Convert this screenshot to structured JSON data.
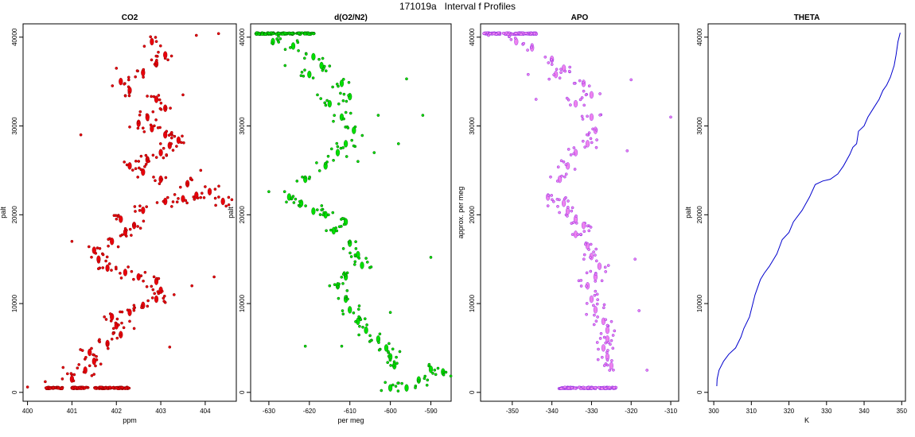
{
  "figure": {
    "title": "171019a   Interval f Profiles"
  },
  "chart_data": [
    {
      "type": "scatter",
      "title": "CO2",
      "xlabel": "ppm",
      "ylabel": "palt",
      "xlim": [
        399.9,
        404.7
      ],
      "ylim": [
        -1000,
        41500
      ],
      "xticks": [
        400,
        401,
        402,
        403,
        404
      ],
      "yticks": [
        0,
        10000,
        20000,
        30000,
        40000
      ],
      "color": "#e8000b",
      "outline": "#8b0000",
      "series": [
        {
          "x": [
            400.6,
            401.2,
            401.7,
            402.1
          ],
          "y": [
            500,
            500,
            500,
            500
          ]
        },
        {
          "x": [
            401.0,
            401.3,
            401.5,
            401.4,
            401.8,
            402.1,
            402.0,
            401.9,
            402.3,
            402.6,
            402.9,
            403.0,
            402.9,
            402.5,
            402.2,
            401.8,
            401.6,
            401.5,
            401.9,
            402.2,
            402.4,
            402.1,
            402.6,
            403.1,
            403.5,
            403.8,
            404.1,
            404.4,
            403.6,
            403.0,
            402.6,
            402.3,
            402.7,
            403.0,
            403.2,
            403.4,
            403.1,
            402.8,
            402.5,
            402.7,
            403.1,
            402.9,
            402.3,
            402.1,
            402.6,
            402.9,
            403.1,
            402.8
          ],
          "y": [
            1500,
            2500,
            3500,
            4500,
            5500,
            6500,
            7500,
            8500,
            9000,
            9800,
            10500,
            11500,
            12500,
            13000,
            13500,
            14000,
            15000,
            16000,
            17000,
            18000,
            18800,
            19500,
            20500,
            21500,
            21800,
            22200,
            22600,
            21500,
            23500,
            24000,
            24800,
            25500,
            26200,
            27000,
            27800,
            28400,
            29000,
            29700,
            30300,
            31000,
            32000,
            33000,
            34000,
            35000,
            36000,
            37000,
            38000,
            39500
          ]
        },
        {
          "x": [
            400.0,
            400.4,
            400.8,
            401.5,
            401.9,
            402.3,
            402.7,
            403.3,
            403.7,
            404.2,
            404.6,
            403.9,
            403.5,
            402.0,
            401.2,
            401.0,
            403.8,
            404.3,
            402.4,
            403.2,
            401.4,
            400.9
          ],
          "y": [
            600,
            1200,
            2800,
            4200,
            6000,
            8000,
            9700,
            11000,
            12000,
            13000,
            21700,
            25000,
            33500,
            36500,
            29000,
            17000,
            40200,
            40400,
            7200,
            5100,
            3000,
            2100
          ]
        }
      ]
    },
    {
      "type": "scatter",
      "title": "d(O2/N2)",
      "xlabel": "per meg",
      "ylabel": "palt",
      "xlim": [
        -634.5,
        -585
      ],
      "ylim": [
        -1000,
        41500
      ],
      "xticks": [
        -630,
        -620,
        -610,
        -600,
        -590
      ],
      "yticks": [
        0,
        10000,
        20000,
        30000,
        40000
      ],
      "color": "#00e000",
      "outline": "#006400",
      "series": [
        {
          "x": [
            -631,
            -626,
            -621
          ],
          "y": [
            40400,
            40400,
            40400
          ]
        },
        {
          "x": [
            -629,
            -624,
            -619,
            -617,
            -620,
            -612,
            -610,
            -615,
            -612,
            -609,
            -611,
            -613,
            -616,
            -621,
            -625,
            -622,
            -619,
            -616,
            -611,
            -614,
            -610,
            -608,
            -607,
            -611,
            -613,
            -611,
            -610,
            -608,
            -606,
            -603,
            -601,
            -600,
            -599
          ],
          "y": [
            39500,
            39000,
            37800,
            36800,
            35800,
            34800,
            33300,
            32500,
            31000,
            29500,
            28000,
            27000,
            25500,
            24000,
            22000,
            21300,
            20400,
            20000,
            19200,
            18200,
            16800,
            15500,
            14300,
            13000,
            12000,
            10500,
            9300,
            8000,
            7000,
            6000,
            5000,
            4000,
            3000
          ]
        },
        {
          "x": [
            -600,
            -596,
            -593,
            -590,
            -587
          ],
          "y": [
            500,
            500,
            1400,
            2600,
            2300
          ]
        },
        {
          "x": [
            -633,
            -628,
            -618,
            -603,
            -596,
            -592,
            -590,
            -598,
            -604,
            -612,
            -626,
            -630,
            -608,
            -615,
            -606,
            -600,
            -621
          ],
          "y": [
            40500,
            39800,
            33500,
            31200,
            35300,
            31200,
            15200,
            28000,
            27000,
            5200,
            36800,
            22600,
            26000,
            12000,
            15100,
            9000,
            5200
          ]
        }
      ]
    },
    {
      "type": "scatter",
      "title": "APO",
      "xlabel": "",
      "ylabel": "approx. per meg",
      "xlim": [
        -358,
        -308
      ],
      "ylim": [
        -1000,
        41500
      ],
      "xticks": [
        -350,
        -340,
        -330,
        -320,
        -310
      ],
      "yticks": [
        0,
        10000,
        20000,
        30000,
        40000
      ],
      "color": "#ee82ee",
      "outline": "#8a2be2",
      "series": [
        {
          "x": [
            -355,
            -350,
            -346
          ],
          "y": [
            40400,
            40400,
            40400
          ]
        },
        {
          "x": [
            -349,
            -345,
            -340,
            -337,
            -339,
            -332,
            -330,
            -334,
            -330,
            -329,
            -331,
            -334,
            -336,
            -338,
            -341,
            -337,
            -336,
            -334,
            -332,
            -334,
            -331,
            -330,
            -328,
            -329,
            -331,
            -330,
            -329,
            -327,
            -326,
            -326,
            -327,
            -326,
            -325
          ],
          "y": [
            39500,
            38800,
            37500,
            36500,
            35800,
            34800,
            33500,
            32500,
            31000,
            29500,
            28000,
            27000,
            25500,
            24000,
            22000,
            21300,
            20400,
            19500,
            18800,
            17800,
            16500,
            15300,
            14200,
            13000,
            12000,
            10500,
            9300,
            8000,
            7000,
            6000,
            5000,
            4000,
            3000
          ]
        },
        {
          "x": [
            -336,
            -331,
            -326
          ],
          "y": [
            500,
            500,
            500
          ]
        },
        {
          "x": [
            -356,
            -346,
            -320,
            -321,
            -310,
            -318,
            -316,
            -341,
            -344,
            -319
          ],
          "y": [
            40200,
            35800,
            35200,
            27200,
            31000,
            9200,
            2500,
            21000,
            33000,
            15000
          ]
        }
      ]
    },
    {
      "type": "line",
      "title": "THETA",
      "xlabel": "K",
      "ylabel": "palt",
      "xlim": [
        298.5,
        351
      ],
      "ylim": [
        -1000,
        41500
      ],
      "xticks": [
        300,
        310,
        320,
        330,
        340,
        350
      ],
      "yticks": [
        0,
        10000,
        20000,
        30000,
        40000
      ],
      "color": "#0000cd",
      "x": [
        300.8,
        300.9,
        301.4,
        302.6,
        304.0,
        305.8,
        307.2,
        308.0,
        309.5,
        311.0,
        312.4,
        313.4,
        314.8,
        316.8,
        318.2,
        320.0,
        321.2,
        323.5,
        325.5,
        327.0,
        329.0,
        331.0,
        333.0,
        334.5,
        336.2,
        337.0,
        338.0,
        338.5,
        340.0,
        341.0,
        342.5,
        344.0,
        345.0,
        346.0,
        347.0,
        348.0,
        348.5,
        349.0,
        349.6
      ],
      "y": [
        700,
        1500,
        2500,
        3500,
        4300,
        5000,
        6200,
        7200,
        8500,
        11000,
        12700,
        13400,
        14200,
        15600,
        17200,
        18000,
        19200,
        20500,
        22000,
        23400,
        23800,
        24000,
        24600,
        25500,
        26800,
        27600,
        28000,
        29400,
        30000,
        31000,
        32000,
        33000,
        34000,
        34600,
        35500,
        36800,
        38000,
        39500,
        40500
      ]
    }
  ]
}
